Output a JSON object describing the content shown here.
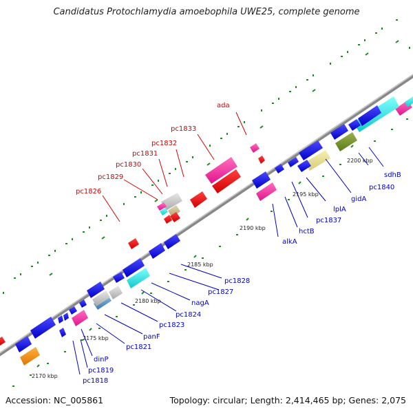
{
  "title": "Candidatus Protochlamydia amoebophila UWE25, complete genome",
  "footer": {
    "accession": "Accession: NC_005861",
    "topology": "Topology: circular; Length: 2,414,465 bp; Genes: 2,075"
  },
  "colors": {
    "backbone": "#8c8c8c",
    "forward_label": "#d40000",
    "reverse_label": "#0000cc",
    "tick_dot": "#1f8a1f"
  },
  "ticks": [
    "2170 kbp",
    "2175 kbp",
    "2180 kbp",
    "2185 kbp",
    "2190 kbp",
    "2195 kbp",
    "2200 kbp"
  ],
  "labels_forward": [
    "ada",
    "pc1833",
    "pc1832",
    "pc1831",
    "pc1830",
    "pc1829",
    "pc1826"
  ],
  "labels_reverse": [
    "sdhB",
    "pc1840",
    "gidA",
    "lplA",
    "pc1837",
    "hctB",
    "alkA",
    "pc1828",
    "pc1827",
    "nagA",
    "pc1824",
    "pc1823",
    "panF",
    "pc1821",
    "dinP",
    "pc1819",
    "pc1818"
  ]
}
